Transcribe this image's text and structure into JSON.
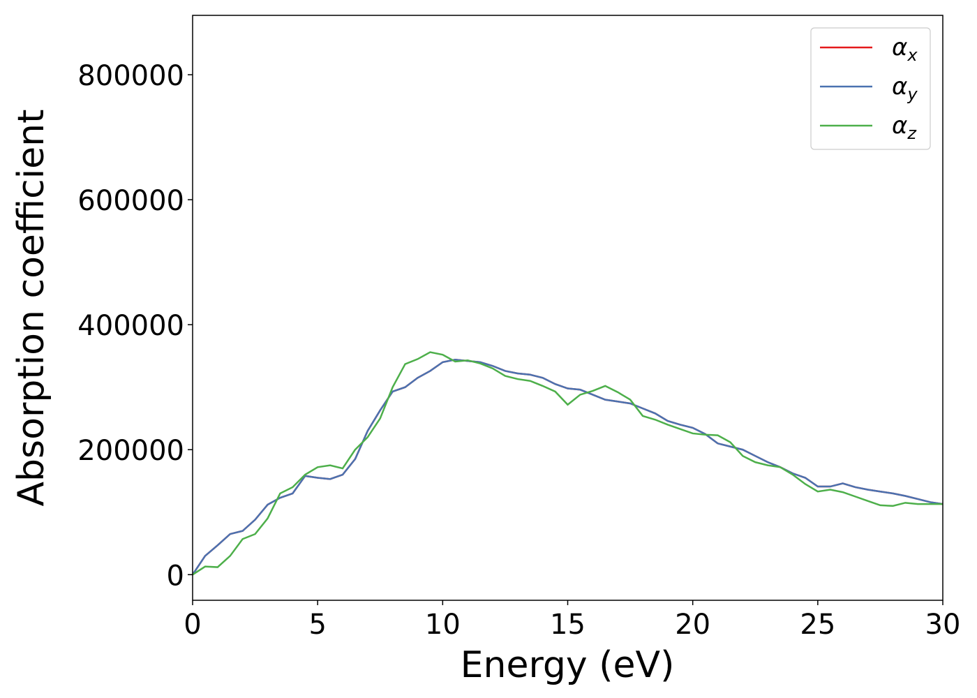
{
  "chart_data": {
    "type": "line",
    "xlabel": "Energy (eV)",
    "ylabel": "Absorption coefficient",
    "x": [
      0,
      0.5,
      1,
      1.5,
      2,
      2.5,
      3,
      3.5,
      4,
      4.5,
      5,
      5.5,
      6,
      6.5,
      7,
      7.5,
      8,
      8.5,
      9,
      9.5,
      10,
      10.5,
      11,
      11.5,
      12,
      12.5,
      13,
      13.5,
      14,
      14.5,
      15,
      15.5,
      16,
      16.5,
      17,
      17.5,
      18,
      18.5,
      19,
      19.5,
      20,
      20.5,
      21,
      21.5,
      22,
      22.5,
      23,
      23.5,
      24,
      24.5,
      25,
      25.5,
      26,
      26.5,
      27,
      27.5,
      28,
      28.5,
      29,
      29.5,
      30
    ],
    "series": [
      {
        "name": "αx",
        "color": "#e41a1c",
        "values": [
          0,
          30000,
          47000,
          65000,
          70000,
          88000,
          112000,
          123000,
          130000,
          158000,
          155000,
          153000,
          160000,
          185000,
          230000,
          263000,
          293000,
          300000,
          315000,
          326000,
          340000,
          344000,
          342000,
          340000,
          334000,
          326000,
          322000,
          320000,
          315000,
          305000,
          298000,
          296000,
          288000,
          280000,
          277000,
          274000,
          266000,
          258000,
          246000,
          240000,
          235000,
          225000,
          210000,
          205000,
          200000,
          190000,
          180000,
          172000,
          162000,
          155000,
          141000,
          141000,
          146000,
          140000,
          136000,
          133000,
          130000,
          126000,
          121000,
          116000,
          113000
        ]
      },
      {
        "name": "αy",
        "color": "#4a72b0",
        "values": [
          0,
          30000,
          47000,
          65000,
          70000,
          88000,
          112000,
          123000,
          130000,
          158000,
          155000,
          153000,
          160000,
          185000,
          230000,
          263000,
          293000,
          300000,
          315000,
          326000,
          340000,
          344000,
          342000,
          340000,
          334000,
          326000,
          322000,
          320000,
          315000,
          305000,
          298000,
          296000,
          288000,
          280000,
          277000,
          274000,
          266000,
          258000,
          246000,
          240000,
          235000,
          225000,
          210000,
          205000,
          200000,
          190000,
          180000,
          172000,
          162000,
          155000,
          141000,
          141000,
          146000,
          140000,
          136000,
          133000,
          130000,
          126000,
          121000,
          116000,
          113000
        ]
      },
      {
        "name": "αz",
        "color": "#4daf4a",
        "values": [
          0,
          13000,
          12000,
          30000,
          57000,
          65000,
          90000,
          130000,
          140000,
          160000,
          172000,
          175000,
          170000,
          200000,
          220000,
          250000,
          300000,
          337000,
          345000,
          356000,
          352000,
          341000,
          343000,
          338000,
          330000,
          318000,
          313000,
          310000,
          302000,
          293000,
          272000,
          288000,
          294000,
          302000,
          292000,
          280000,
          254000,
          248000,
          240000,
          233000,
          226000,
          224000,
          223000,
          212000,
          190000,
          180000,
          175000,
          172000,
          160000,
          145000,
          133000,
          136000,
          132000,
          125000,
          118000,
          111000,
          110000,
          115000,
          113000,
          113000,
          113000
        ]
      }
    ],
    "xlim": [
      0,
      30
    ],
    "xticks": [
      0,
      5,
      10,
      15,
      20,
      25,
      30
    ],
    "ylim": [
      -41000,
      895000
    ],
    "yticks": [
      0,
      200000,
      400000,
      600000,
      800000
    ],
    "grid": false,
    "legend": "upper right"
  }
}
